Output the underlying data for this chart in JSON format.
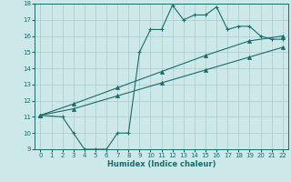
{
  "xlabel": "Humidex (Indice chaleur)",
  "bg_color": "#cce8e8",
  "line_color": "#1a6b6b",
  "grid_color": "#aacccc",
  "xlim": [
    -0.5,
    22.5
  ],
  "ylim": [
    9,
    18
  ],
  "xticks": [
    0,
    1,
    2,
    3,
    4,
    5,
    6,
    7,
    8,
    9,
    10,
    11,
    12,
    13,
    14,
    15,
    16,
    17,
    18,
    19,
    20,
    21,
    22
  ],
  "yticks": [
    9,
    10,
    11,
    12,
    13,
    14,
    15,
    16,
    17,
    18
  ],
  "line1_x": [
    0,
    2,
    3,
    4,
    5,
    6,
    7,
    8,
    9,
    10,
    11,
    12,
    13,
    14,
    15,
    16,
    17,
    18,
    19,
    20,
    21,
    22
  ],
  "line1_y": [
    11.1,
    11.0,
    10.0,
    9.0,
    9.0,
    9.0,
    10.0,
    10.0,
    15.0,
    16.4,
    16.4,
    17.9,
    17.0,
    17.3,
    17.3,
    17.8,
    16.4,
    16.6,
    16.6,
    16.0,
    15.8,
    15.8
  ],
  "line2_x": [
    0,
    3,
    7,
    11,
    15,
    19,
    22
  ],
  "line2_y": [
    11.1,
    11.8,
    12.8,
    13.8,
    14.8,
    15.7,
    16.0
  ],
  "line3_x": [
    0,
    3,
    7,
    11,
    15,
    19,
    22
  ],
  "line3_y": [
    11.1,
    11.5,
    12.3,
    13.1,
    13.9,
    14.7,
    15.3
  ],
  "tick_fontsize": 5,
  "xlabel_fontsize": 6
}
